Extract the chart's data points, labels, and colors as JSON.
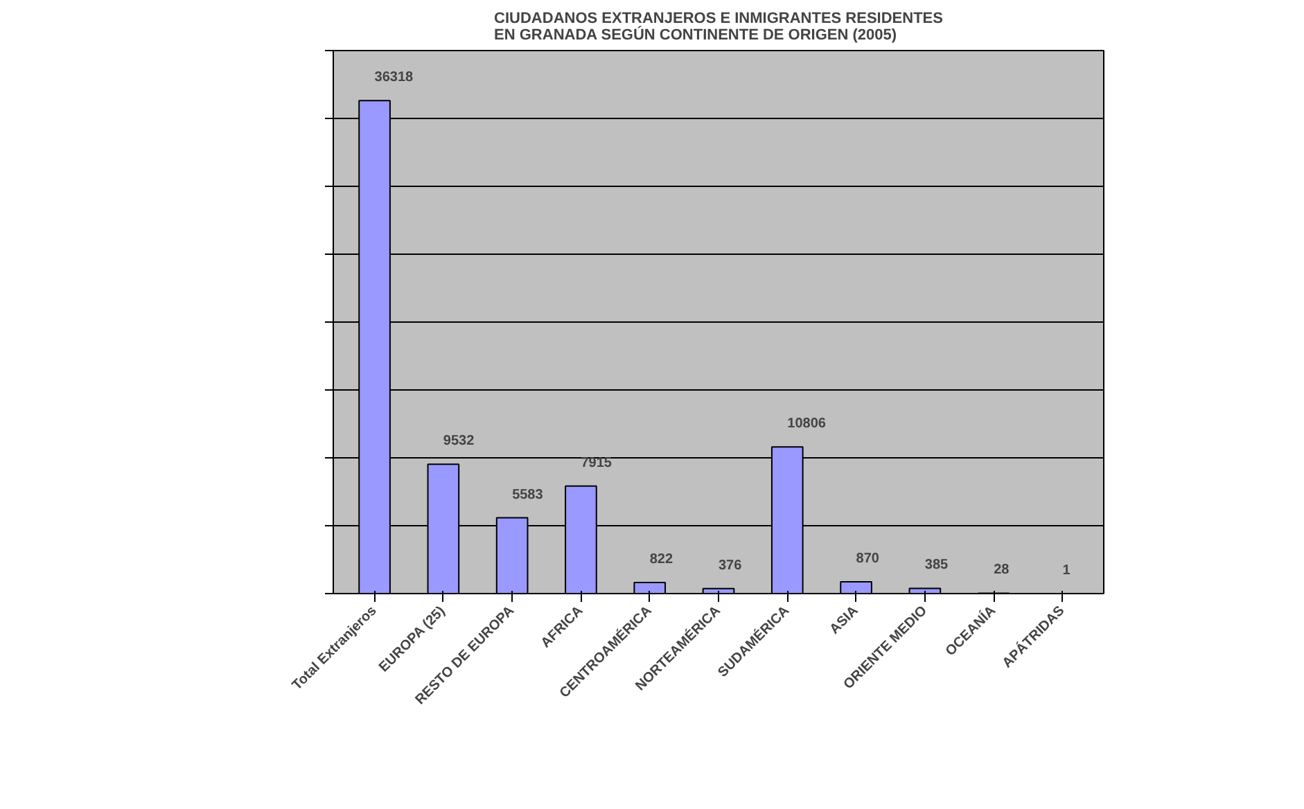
{
  "chart_data": {
    "type": "bar",
    "title": "CIUDADANOS EXTRANJEROS E INMIGRANTES RESIDENTES\nEN GRANADA SEGÚN CONTINENTE DE ORIGEN (2005)",
    "categories": [
      "Total Extranjeros",
      "EUROPA (25)",
      "RESTO DE EUROPA",
      "AFRICA",
      "CENTROAMÉRICA",
      "NORTEAMÉRICA",
      "SUDAMÉRICA",
      "ASIA",
      "ORIENTE MEDIO",
      "OCEANÍA",
      "APÁTRIDAS"
    ],
    "values": [
      36318,
      9532,
      5583,
      7915,
      822,
      376,
      10806,
      870,
      385,
      28,
      1
    ],
    "color": "#9999ff",
    "data_labels": true,
    "grid": "y",
    "tick_labels": "x",
    "ylim": [
      0,
      40000
    ],
    "yticks": [
      {
        "value": 0,
        "label": null
      },
      {
        "value": 5000,
        "label": null
      },
      {
        "value": 10000,
        "label": null
      },
      {
        "value": 15000,
        "label": null
      },
      {
        "value": 20000,
        "label": null
      },
      {
        "value": 25000,
        "label": null
      },
      {
        "value": 30000,
        "label": null
      },
      {
        "value": 35000,
        "label": null
      },
      {
        "value": 40000,
        "label": null
      }
    ]
  }
}
